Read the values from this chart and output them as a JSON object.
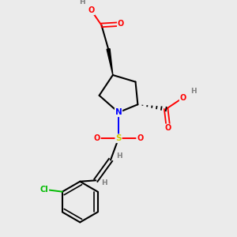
{
  "bg_color": "#ebebeb",
  "atom_colors": {
    "C": "#000000",
    "H": "#808080",
    "O": "#ff0000",
    "N": "#0000ff",
    "S": "#cccc00",
    "Cl": "#00bb00"
  },
  "bond_color": "#000000",
  "figsize": [
    3.0,
    3.0
  ],
  "dpi": 100,
  "xlim": [
    0,
    10
  ],
  "ylim": [
    0,
    10
  ]
}
